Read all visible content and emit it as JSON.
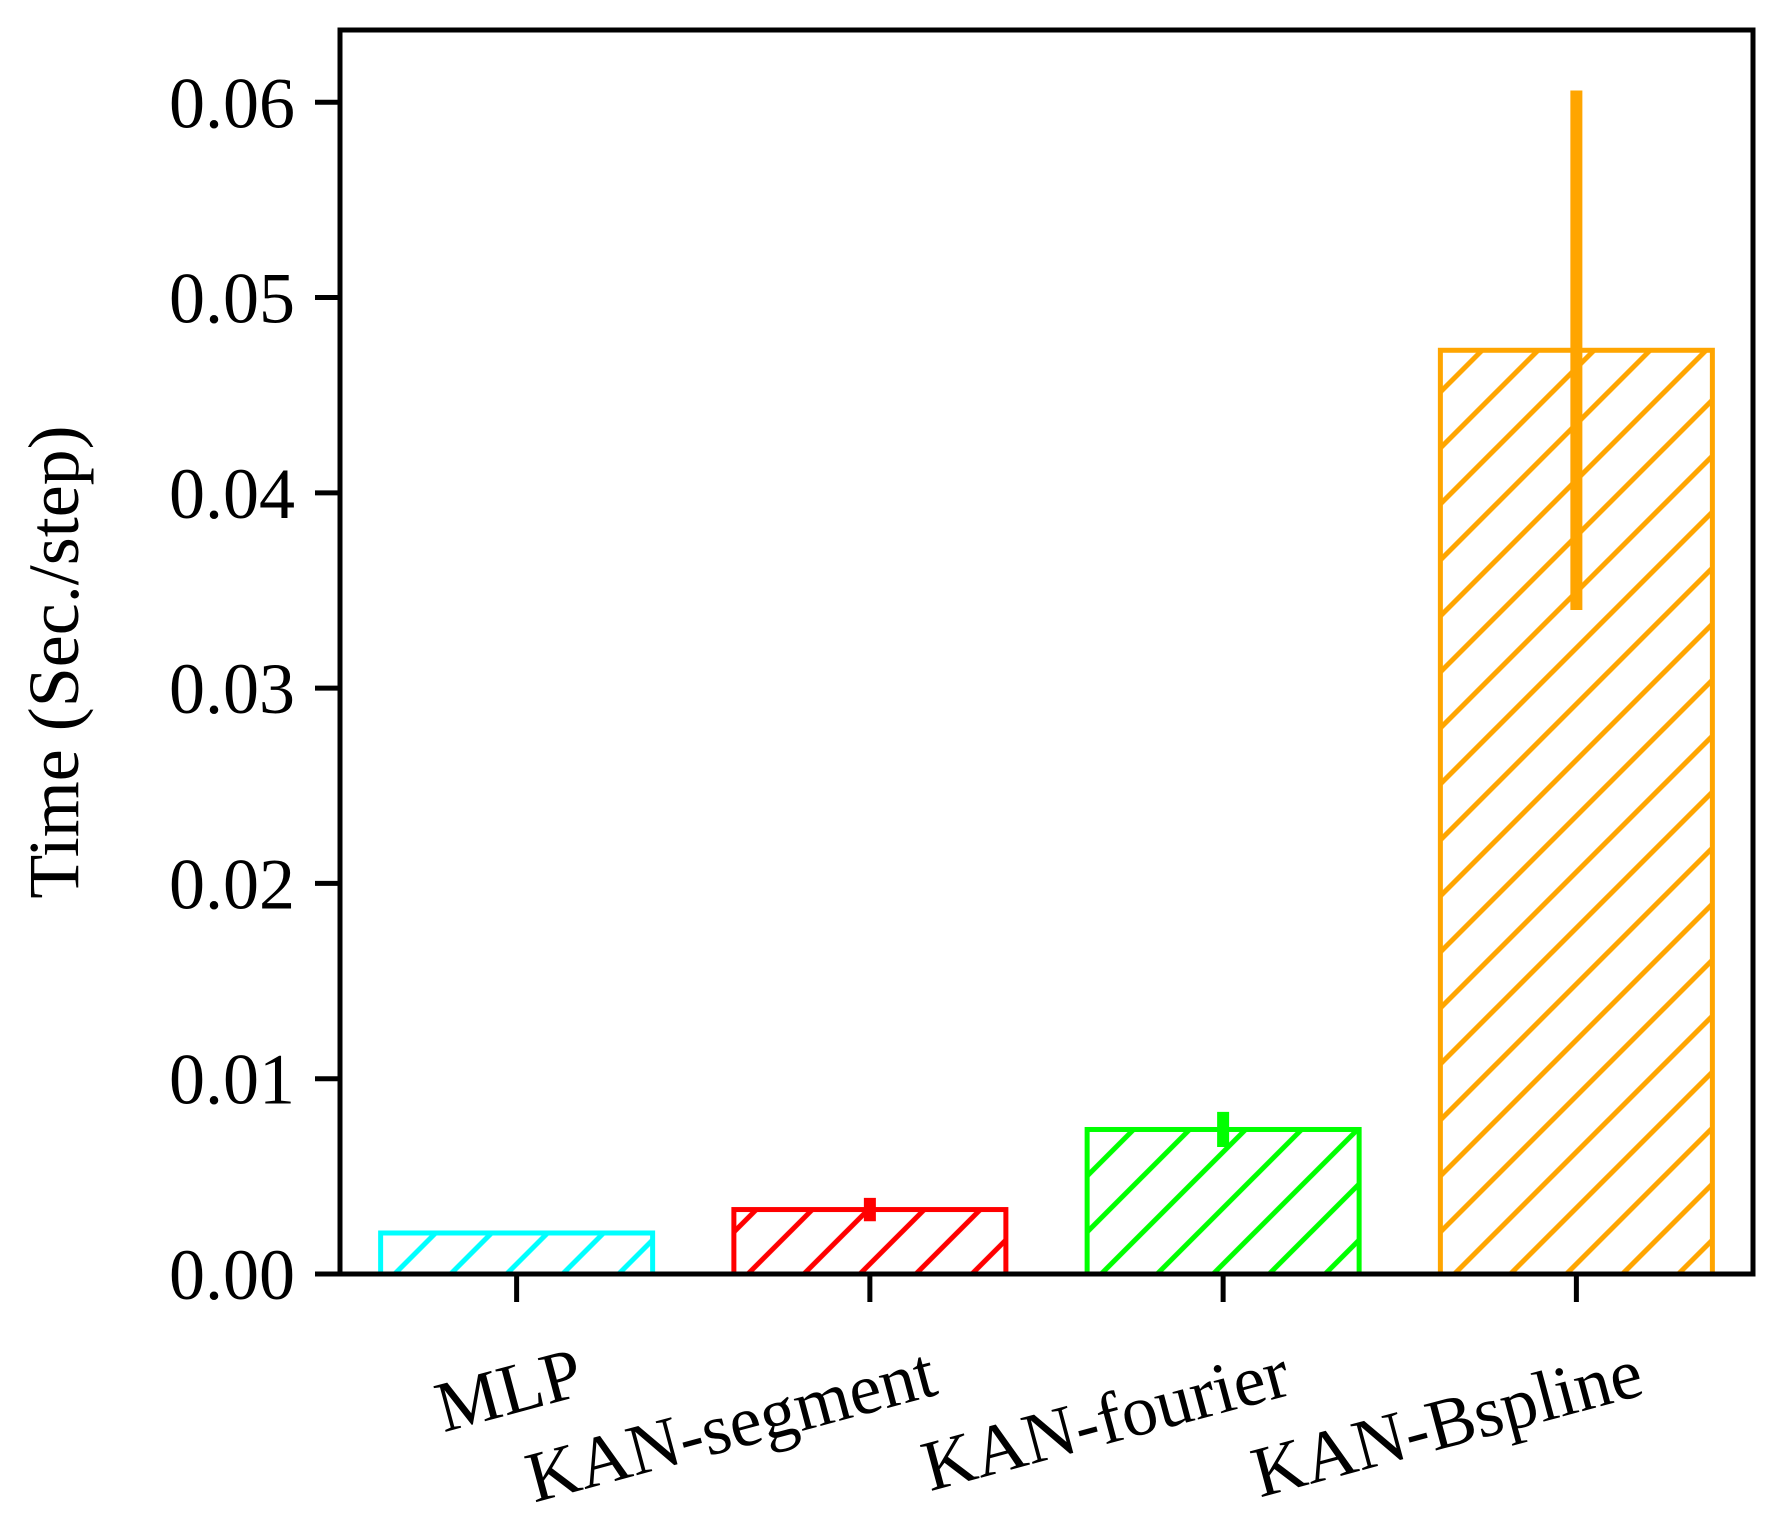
{
  "chart_data": {
    "type": "bar",
    "title": "",
    "xlabel": "",
    "ylabel": "Time (Sec./step)",
    "categories": [
      "MLP",
      "KAN-segment",
      "KAN-fourier",
      "KAN-Bspline"
    ],
    "values": [
      0.0021,
      0.0033,
      0.0074,
      0.0473
    ],
    "error": [
      0.0001,
      0.0006,
      0.0009,
      0.0133
    ],
    "colors": [
      "#00ffff",
      "#ff0000",
      "#00ff00",
      "#ffa500"
    ],
    "hatch": "diagonal",
    "ylim": [
      0,
      0.0637
    ],
    "yticks": [
      0.0,
      0.01,
      0.02,
      0.03,
      0.04,
      0.05,
      0.06
    ],
    "ytick_labels": [
      "0.00",
      "0.01",
      "0.02",
      "0.03",
      "0.04",
      "0.05",
      "0.06"
    ],
    "grid": false,
    "legend": false
  }
}
